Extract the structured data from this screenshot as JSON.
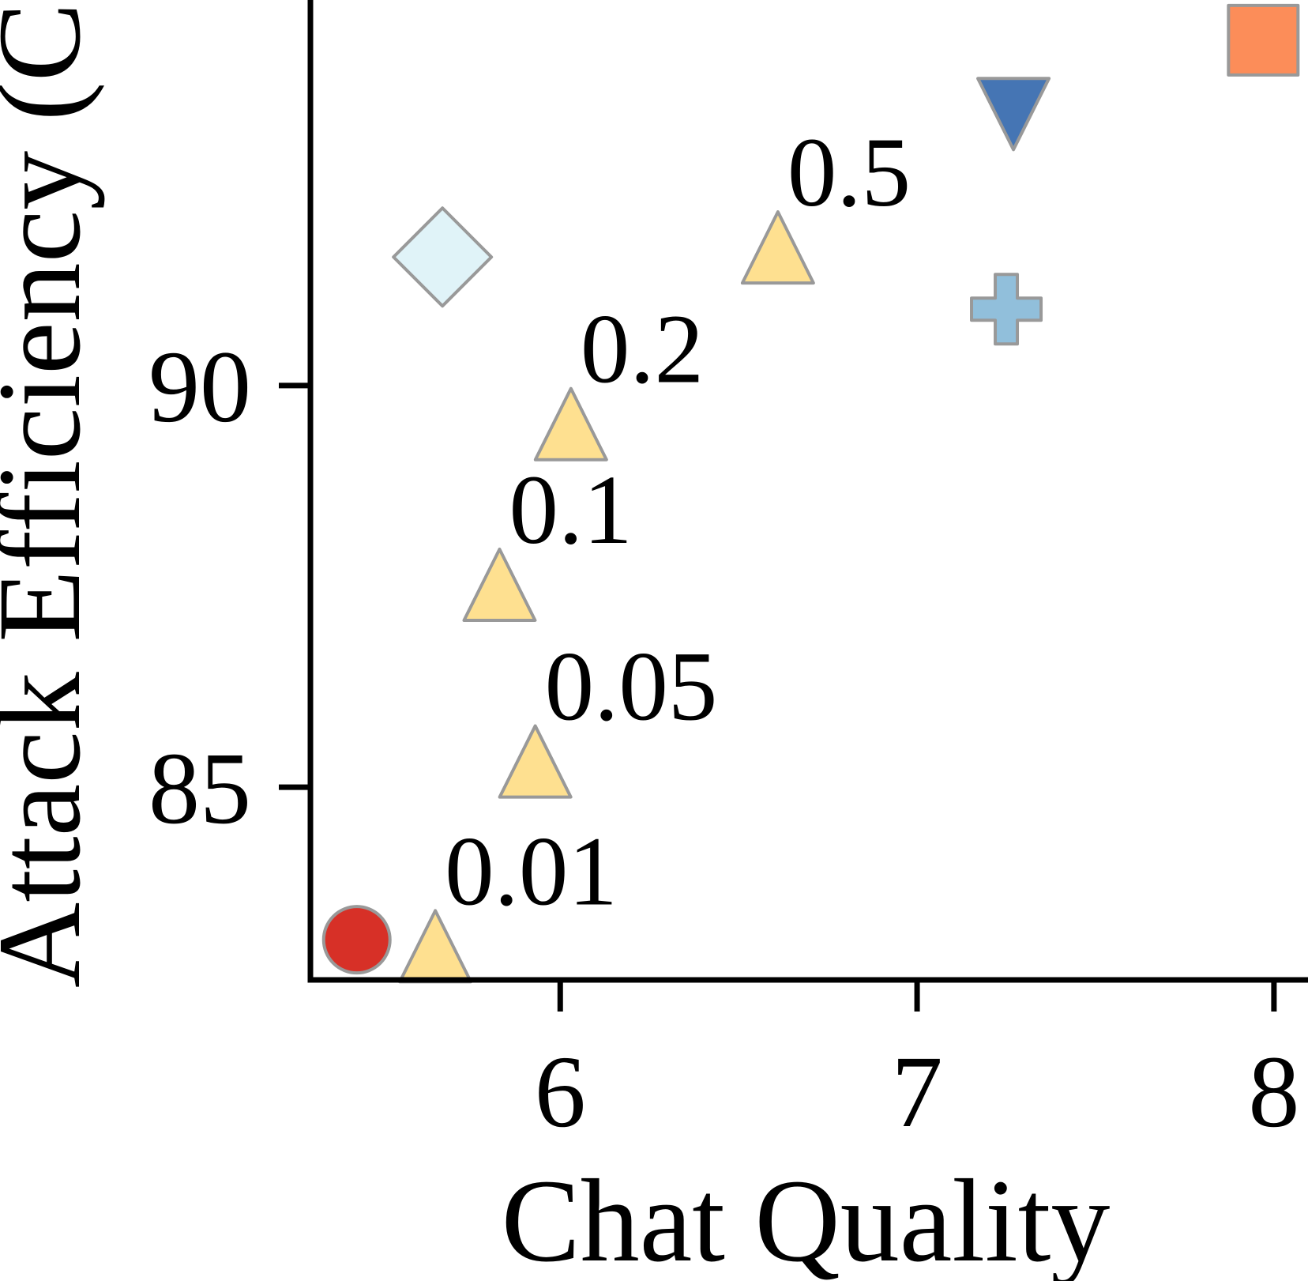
{
  "chart_data": {
    "type": "scatter",
    "title": "",
    "xlabel": "Chat Quality",
    "ylabel": "Attack Efficiency (CS)",
    "xlim": [
      5.3,
      8.06
    ],
    "ylim": [
      82.6,
      94.8
    ],
    "x_ticks": [
      6,
      7,
      8
    ],
    "y_ticks": [
      85,
      90
    ],
    "grid": false,
    "legend": "none",
    "marker_stroke": "#999999",
    "series": [
      {
        "marker": "circle",
        "color": "#d73027",
        "points": [
          {
            "x": 5.43,
            "y": 83.1
          }
        ]
      },
      {
        "marker": "triangle-up",
        "color": "#fee090",
        "points": [
          {
            "x": 5.65,
            "y": 83.0,
            "label": "0.01"
          },
          {
            "x": 5.93,
            "y": 85.3,
            "label": "0.05"
          },
          {
            "x": 5.83,
            "y": 87.5,
            "label": "0.1"
          },
          {
            "x": 6.03,
            "y": 89.5,
            "label": "0.2"
          },
          {
            "x": 6.61,
            "y": 91.7,
            "label": "0.5"
          }
        ]
      },
      {
        "marker": "diamond",
        "color": "#e0f3f8",
        "points": [
          {
            "x": 5.67,
            "y": 91.6
          }
        ]
      },
      {
        "marker": "triangle-down",
        "color": "#4575b4",
        "points": [
          {
            "x": 7.27,
            "y": 93.4
          }
        ]
      },
      {
        "marker": "plus",
        "color": "#91bfdb",
        "points": [
          {
            "x": 7.25,
            "y": 90.95
          }
        ]
      },
      {
        "marker": "square",
        "color": "#fc8d59",
        "points": [
          {
            "x": 7.97,
            "y": 94.3
          }
        ]
      }
    ]
  }
}
